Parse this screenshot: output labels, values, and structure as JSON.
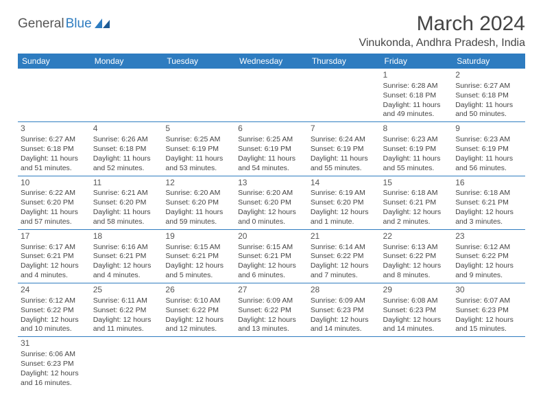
{
  "logo": {
    "part1": "General",
    "part2": "Blue"
  },
  "title": "March 2024",
  "location": "Vinukonda, Andhra Pradesh, India",
  "colors": {
    "header_bg": "#2e7cc0",
    "header_fg": "#ffffff",
    "border": "#2e7cc0",
    "text": "#444444"
  },
  "day_headers": [
    "Sunday",
    "Monday",
    "Tuesday",
    "Wednesday",
    "Thursday",
    "Friday",
    "Saturday"
  ],
  "weeks": [
    [
      null,
      null,
      null,
      null,
      null,
      {
        "n": "1",
        "sr": "6:28 AM",
        "ss": "6:18 PM",
        "dl": "11 hours and 49 minutes."
      },
      {
        "n": "2",
        "sr": "6:27 AM",
        "ss": "6:18 PM",
        "dl": "11 hours and 50 minutes."
      }
    ],
    [
      {
        "n": "3",
        "sr": "6:27 AM",
        "ss": "6:18 PM",
        "dl": "11 hours and 51 minutes."
      },
      {
        "n": "4",
        "sr": "6:26 AM",
        "ss": "6:18 PM",
        "dl": "11 hours and 52 minutes."
      },
      {
        "n": "5",
        "sr": "6:25 AM",
        "ss": "6:19 PM",
        "dl": "11 hours and 53 minutes."
      },
      {
        "n": "6",
        "sr": "6:25 AM",
        "ss": "6:19 PM",
        "dl": "11 hours and 54 minutes."
      },
      {
        "n": "7",
        "sr": "6:24 AM",
        "ss": "6:19 PM",
        "dl": "11 hours and 55 minutes."
      },
      {
        "n": "8",
        "sr": "6:23 AM",
        "ss": "6:19 PM",
        "dl": "11 hours and 55 minutes."
      },
      {
        "n": "9",
        "sr": "6:23 AM",
        "ss": "6:19 PM",
        "dl": "11 hours and 56 minutes."
      }
    ],
    [
      {
        "n": "10",
        "sr": "6:22 AM",
        "ss": "6:20 PM",
        "dl": "11 hours and 57 minutes."
      },
      {
        "n": "11",
        "sr": "6:21 AM",
        "ss": "6:20 PM",
        "dl": "11 hours and 58 minutes."
      },
      {
        "n": "12",
        "sr": "6:20 AM",
        "ss": "6:20 PM",
        "dl": "11 hours and 59 minutes."
      },
      {
        "n": "13",
        "sr": "6:20 AM",
        "ss": "6:20 PM",
        "dl": "12 hours and 0 minutes."
      },
      {
        "n": "14",
        "sr": "6:19 AM",
        "ss": "6:20 PM",
        "dl": "12 hours and 1 minute."
      },
      {
        "n": "15",
        "sr": "6:18 AM",
        "ss": "6:21 PM",
        "dl": "12 hours and 2 minutes."
      },
      {
        "n": "16",
        "sr": "6:18 AM",
        "ss": "6:21 PM",
        "dl": "12 hours and 3 minutes."
      }
    ],
    [
      {
        "n": "17",
        "sr": "6:17 AM",
        "ss": "6:21 PM",
        "dl": "12 hours and 4 minutes."
      },
      {
        "n": "18",
        "sr": "6:16 AM",
        "ss": "6:21 PM",
        "dl": "12 hours and 4 minutes."
      },
      {
        "n": "19",
        "sr": "6:15 AM",
        "ss": "6:21 PM",
        "dl": "12 hours and 5 minutes."
      },
      {
        "n": "20",
        "sr": "6:15 AM",
        "ss": "6:21 PM",
        "dl": "12 hours and 6 minutes."
      },
      {
        "n": "21",
        "sr": "6:14 AM",
        "ss": "6:22 PM",
        "dl": "12 hours and 7 minutes."
      },
      {
        "n": "22",
        "sr": "6:13 AM",
        "ss": "6:22 PM",
        "dl": "12 hours and 8 minutes."
      },
      {
        "n": "23",
        "sr": "6:12 AM",
        "ss": "6:22 PM",
        "dl": "12 hours and 9 minutes."
      }
    ],
    [
      {
        "n": "24",
        "sr": "6:12 AM",
        "ss": "6:22 PM",
        "dl": "12 hours and 10 minutes."
      },
      {
        "n": "25",
        "sr": "6:11 AM",
        "ss": "6:22 PM",
        "dl": "12 hours and 11 minutes."
      },
      {
        "n": "26",
        "sr": "6:10 AM",
        "ss": "6:22 PM",
        "dl": "12 hours and 12 minutes."
      },
      {
        "n": "27",
        "sr": "6:09 AM",
        "ss": "6:22 PM",
        "dl": "12 hours and 13 minutes."
      },
      {
        "n": "28",
        "sr": "6:09 AM",
        "ss": "6:23 PM",
        "dl": "12 hours and 14 minutes."
      },
      {
        "n": "29",
        "sr": "6:08 AM",
        "ss": "6:23 PM",
        "dl": "12 hours and 14 minutes."
      },
      {
        "n": "30",
        "sr": "6:07 AM",
        "ss": "6:23 PM",
        "dl": "12 hours and 15 minutes."
      }
    ],
    [
      {
        "n": "31",
        "sr": "6:06 AM",
        "ss": "6:23 PM",
        "dl": "12 hours and 16 minutes."
      },
      null,
      null,
      null,
      null,
      null,
      null
    ]
  ],
  "labels": {
    "sunrise": "Sunrise: ",
    "sunset": "Sunset: ",
    "daylight": "Daylight: "
  }
}
